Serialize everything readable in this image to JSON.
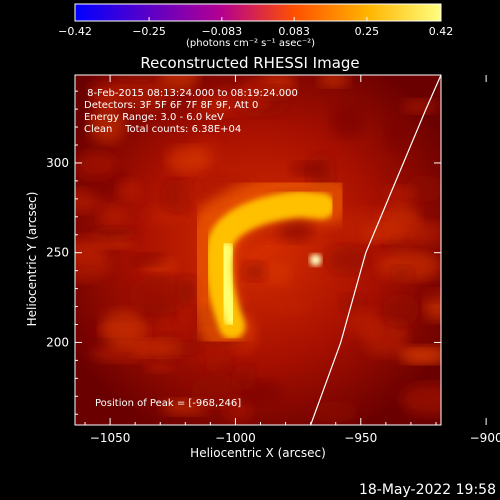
{
  "chart_data": {
    "type": "heatmap",
    "title": "Reconstructed RHESSI Image",
    "xlabel": "Heliocentric X (arcsec)",
    "ylabel": "Heliocentric Y (arcsec)",
    "xlim": [
      -1064,
      -918
    ],
    "ylim": [
      154,
      349
    ],
    "x_ticks": [
      -1050,
      -1000,
      -950,
      -900
    ],
    "x_tick_labels": [
      "−1050",
      "−1000",
      "−950",
      "−900"
    ],
    "y_ticks": [
      200,
      250,
      300
    ],
    "y_tick_labels": [
      "200",
      "250",
      "300"
    ],
    "colorbar": {
      "min": -0.42,
      "max": 0.42,
      "ticks": [
        -0.42,
        -0.25,
        -0.083,
        0.083,
        0.25,
        0.42
      ],
      "tick_labels": [
        "−0.42",
        "−0.25",
        "−0.083",
        "0.083",
        "0.25",
        "0.42"
      ],
      "units_label": "(photons cm⁻² s⁻¹ asec⁻²)",
      "colors": [
        "#0000ff",
        "#5a00c8",
        "#b40090",
        "#ff5000",
        "#ffb400",
        "#ffff80"
      ]
    },
    "peak": [
      -968,
      246
    ],
    "limb_line": [
      [
        -918,
        349
      ],
      [
        -924,
        330
      ],
      [
        -936,
        290
      ],
      [
        -948,
        250
      ],
      [
        -958,
        200
      ],
      [
        -970,
        154
      ]
    ],
    "annotations": [
      " 8-Feb-2015 08:13:24.000 to 08:19:24.000",
      "Detectors: 3F 5F 6F 7F 8F 9F, Att 0",
      "Energy Range: 3.0 - 6.0 keV",
      "Clean    Total counts: 6.38E+04"
    ],
    "peak_label": "Position of Peak = [-968,246]",
    "grid": false,
    "legend": "none"
  },
  "footer": {
    "timestamp": "18-May-2022 19:58"
  }
}
